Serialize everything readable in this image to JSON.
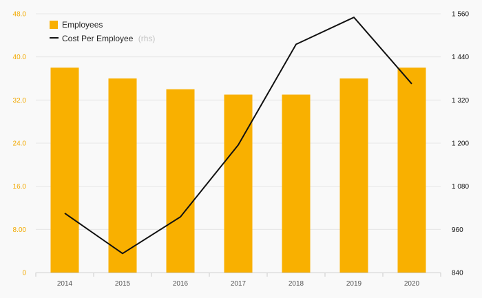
{
  "chart_data": {
    "type": "bar+line",
    "categories": [
      "2014",
      "2015",
      "2016",
      "2017",
      "2018",
      "2019",
      "2020"
    ],
    "series": [
      {
        "name": "Employees",
        "type": "bar",
        "axis": "left",
        "color": "#f9b000",
        "values": [
          38,
          36,
          34,
          33,
          33,
          36,
          38
        ]
      },
      {
        "name": "Cost Per Employee",
        "suffix": "(rhs)",
        "type": "line",
        "axis": "right",
        "color": "#111111",
        "values": [
          1005,
          893,
          995,
          1195,
          1475,
          1550,
          1365
        ]
      }
    ],
    "y_left": {
      "ylim": [
        0,
        48
      ],
      "ticks": [
        "0",
        "8.00",
        "16.0",
        "24.0",
        "32.0",
        "40.0",
        "48.0"
      ],
      "tick_values": [
        0,
        8,
        16,
        24,
        32,
        40,
        48
      ],
      "color": "#f2a900"
    },
    "y_right": {
      "ylim": [
        840,
        1560
      ],
      "ticks": [
        "840",
        "960",
        "1 080",
        "1 200",
        "1 320",
        "1 440",
        "1 560"
      ],
      "tick_values": [
        840,
        960,
        1080,
        1200,
        1320,
        1440,
        1560
      ],
      "color": "#111111"
    },
    "grid": true,
    "legend_position": "top-left"
  }
}
